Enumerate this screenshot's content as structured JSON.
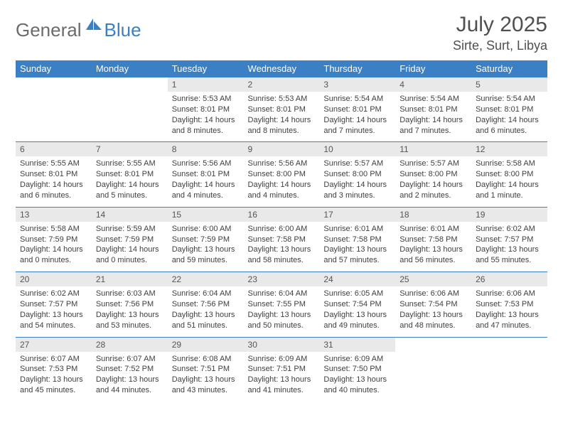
{
  "brand": {
    "part1": "General",
    "part2": "Blue"
  },
  "title": "July 2025",
  "location": "Sirte, Surt, Libya",
  "colors": {
    "header_bg": "#3b7fc4",
    "header_text": "#ffffff",
    "daynum_bg": "#e9e9e9",
    "text": "#404040",
    "title_text": "#505050",
    "row_border": "#3b7fc4",
    "page_bg": "#ffffff"
  },
  "fonts": {
    "title_size": 30,
    "location_size": 18,
    "dayhead_size": 13,
    "daynum_size": 12,
    "body_size": 11
  },
  "day_names": [
    "Sunday",
    "Monday",
    "Tuesday",
    "Wednesday",
    "Thursday",
    "Friday",
    "Saturday"
  ],
  "weeks": [
    [
      null,
      null,
      {
        "n": "1",
        "sunrise": "5:53 AM",
        "sunset": "8:01 PM",
        "daylight": "14 hours and 8 minutes."
      },
      {
        "n": "2",
        "sunrise": "5:53 AM",
        "sunset": "8:01 PM",
        "daylight": "14 hours and 8 minutes."
      },
      {
        "n": "3",
        "sunrise": "5:54 AM",
        "sunset": "8:01 PM",
        "daylight": "14 hours and 7 minutes."
      },
      {
        "n": "4",
        "sunrise": "5:54 AM",
        "sunset": "8:01 PM",
        "daylight": "14 hours and 7 minutes."
      },
      {
        "n": "5",
        "sunrise": "5:54 AM",
        "sunset": "8:01 PM",
        "daylight": "14 hours and 6 minutes."
      }
    ],
    [
      {
        "n": "6",
        "sunrise": "5:55 AM",
        "sunset": "8:01 PM",
        "daylight": "14 hours and 6 minutes."
      },
      {
        "n": "7",
        "sunrise": "5:55 AM",
        "sunset": "8:01 PM",
        "daylight": "14 hours and 5 minutes."
      },
      {
        "n": "8",
        "sunrise": "5:56 AM",
        "sunset": "8:01 PM",
        "daylight": "14 hours and 4 minutes."
      },
      {
        "n": "9",
        "sunrise": "5:56 AM",
        "sunset": "8:00 PM",
        "daylight": "14 hours and 4 minutes."
      },
      {
        "n": "10",
        "sunrise": "5:57 AM",
        "sunset": "8:00 PM",
        "daylight": "14 hours and 3 minutes."
      },
      {
        "n": "11",
        "sunrise": "5:57 AM",
        "sunset": "8:00 PM",
        "daylight": "14 hours and 2 minutes."
      },
      {
        "n": "12",
        "sunrise": "5:58 AM",
        "sunset": "8:00 PM",
        "daylight": "14 hours and 1 minute."
      }
    ],
    [
      {
        "n": "13",
        "sunrise": "5:58 AM",
        "sunset": "7:59 PM",
        "daylight": "14 hours and 0 minutes."
      },
      {
        "n": "14",
        "sunrise": "5:59 AM",
        "sunset": "7:59 PM",
        "daylight": "14 hours and 0 minutes."
      },
      {
        "n": "15",
        "sunrise": "6:00 AM",
        "sunset": "7:59 PM",
        "daylight": "13 hours and 59 minutes."
      },
      {
        "n": "16",
        "sunrise": "6:00 AM",
        "sunset": "7:58 PM",
        "daylight": "13 hours and 58 minutes."
      },
      {
        "n": "17",
        "sunrise": "6:01 AM",
        "sunset": "7:58 PM",
        "daylight": "13 hours and 57 minutes."
      },
      {
        "n": "18",
        "sunrise": "6:01 AM",
        "sunset": "7:58 PM",
        "daylight": "13 hours and 56 minutes."
      },
      {
        "n": "19",
        "sunrise": "6:02 AM",
        "sunset": "7:57 PM",
        "daylight": "13 hours and 55 minutes."
      }
    ],
    [
      {
        "n": "20",
        "sunrise": "6:02 AM",
        "sunset": "7:57 PM",
        "daylight": "13 hours and 54 minutes."
      },
      {
        "n": "21",
        "sunrise": "6:03 AM",
        "sunset": "7:56 PM",
        "daylight": "13 hours and 53 minutes."
      },
      {
        "n": "22",
        "sunrise": "6:04 AM",
        "sunset": "7:56 PM",
        "daylight": "13 hours and 51 minutes."
      },
      {
        "n": "23",
        "sunrise": "6:04 AM",
        "sunset": "7:55 PM",
        "daylight": "13 hours and 50 minutes."
      },
      {
        "n": "24",
        "sunrise": "6:05 AM",
        "sunset": "7:54 PM",
        "daylight": "13 hours and 49 minutes."
      },
      {
        "n": "25",
        "sunrise": "6:06 AM",
        "sunset": "7:54 PM",
        "daylight": "13 hours and 48 minutes."
      },
      {
        "n": "26",
        "sunrise": "6:06 AM",
        "sunset": "7:53 PM",
        "daylight": "13 hours and 47 minutes."
      }
    ],
    [
      {
        "n": "27",
        "sunrise": "6:07 AM",
        "sunset": "7:53 PM",
        "daylight": "13 hours and 45 minutes."
      },
      {
        "n": "28",
        "sunrise": "6:07 AM",
        "sunset": "7:52 PM",
        "daylight": "13 hours and 44 minutes."
      },
      {
        "n": "29",
        "sunrise": "6:08 AM",
        "sunset": "7:51 PM",
        "daylight": "13 hours and 43 minutes."
      },
      {
        "n": "30",
        "sunrise": "6:09 AM",
        "sunset": "7:51 PM",
        "daylight": "13 hours and 41 minutes."
      },
      {
        "n": "31",
        "sunrise": "6:09 AM",
        "sunset": "7:50 PM",
        "daylight": "13 hours and 40 minutes."
      },
      null,
      null
    ]
  ],
  "labels": {
    "sunrise": "Sunrise:",
    "sunset": "Sunset:",
    "daylight": "Daylight:"
  }
}
